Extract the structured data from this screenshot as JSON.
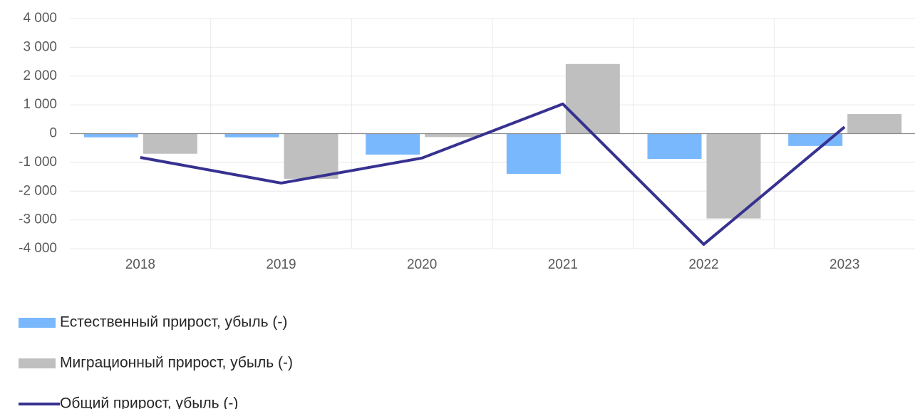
{
  "chart_data": {
    "type": "bar_line",
    "categories": [
      "2018",
      "2019",
      "2020",
      "2021",
      "2022",
      "2023"
    ],
    "series": [
      {
        "name": "Естественный прирост, убыль (-)",
        "type": "bar",
        "color": "#7ab8fd",
        "values": [
          -130,
          -130,
          -730,
          -1400,
          -880,
          -430
        ]
      },
      {
        "name": "Миграционный прирост, убыль (-)",
        "type": "bar",
        "color": "#bfbfbf",
        "values": [
          -700,
          -1570,
          -120,
          2420,
          -2950,
          680
        ]
      },
      {
        "name": "Общий прирост, убыль (-)",
        "type": "line",
        "color": "#373190",
        "values": [
          -830,
          -1720,
          -850,
          1030,
          -3850,
          230
        ]
      }
    ],
    "ylim": [
      -4000,
      4000
    ],
    "yticks": [
      {
        "value": -4000,
        "label": "-4 000"
      },
      {
        "value": -3000,
        "label": "-3 000"
      },
      {
        "value": -2000,
        "label": "-2 000"
      },
      {
        "value": -1000,
        "label": "-1 000"
      },
      0,
      {
        "value": 1000,
        "label": "1 000"
      },
      {
        "value": 2000,
        "label": "2 000"
      },
      {
        "value": 3000,
        "label": "3 000"
      },
      {
        "value": 4000,
        "label": "4 000"
      }
    ],
    "grid": true
  }
}
